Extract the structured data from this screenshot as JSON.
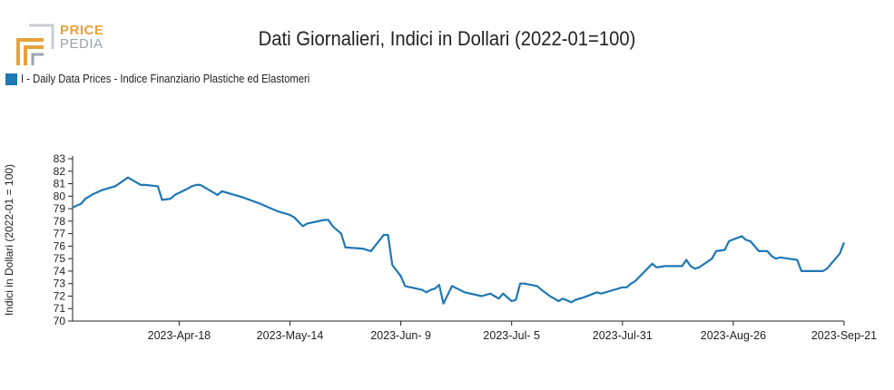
{
  "logo": {
    "line1": "PRICE",
    "line2": "PEDIA"
  },
  "colors": {
    "series": "#1f77b4",
    "logo_orange": "#e8a23a",
    "logo_gray": "#9aa3ad"
  },
  "chart_data": {
    "type": "line",
    "title": "Dati Giornalieri, Indici in Dollari (2022-01=100)",
    "ylabel": "Indici in Dollari (2022-01 = 100)",
    "xlabel": "",
    "ylim": [
      70,
      83
    ],
    "yticks": [
      70,
      71,
      72,
      73,
      74,
      75,
      76,
      77,
      78,
      79,
      80,
      81,
      82,
      83
    ],
    "xticks": [
      "2023-Apr-18",
      "2023-May-14",
      "2023-Jun- 9",
      "2023-Jul- 5",
      "2023-Jul-31",
      "2023-Aug-26",
      "2023-Sep-21"
    ],
    "legend_position": "top-left",
    "grid": false,
    "series": [
      {
        "name": "I - Daily Data Prices - Indice Finanziario Plastiche ed Elastomeri",
        "x": [
          "2023-03-24",
          "2023-03-26",
          "2023-03-27",
          "2023-03-29",
          "2023-03-31",
          "2023-04-03",
          "2023-04-06",
          "2023-04-09",
          "2023-04-10",
          "2023-04-13",
          "2023-04-14",
          "2023-04-16",
          "2023-04-17",
          "2023-04-20",
          "2023-04-21",
          "2023-04-22",
          "2023-04-23",
          "2023-04-27",
          "2023-04-28",
          "2023-04-30",
          "2023-05-03",
          "2023-05-07",
          "2023-05-11",
          "2023-05-12",
          "2023-05-13",
          "2023-05-14",
          "2023-05-15",
          "2023-05-17",
          "2023-05-18",
          "2023-05-22",
          "2023-05-23",
          "2023-05-24",
          "2023-05-26",
          "2023-05-27",
          "2023-05-31",
          "2023-06-02",
          "2023-06-05",
          "2023-06-06",
          "2023-06-07",
          "2023-06-09",
          "2023-06-10",
          "2023-06-14",
          "2023-06-15",
          "2023-06-16",
          "2023-06-17",
          "2023-06-18",
          "2023-06-19",
          "2023-06-21",
          "2023-06-24",
          "2023-06-28",
          "2023-06-30",
          "2023-07-01",
          "2023-07-02",
          "2023-07-03",
          "2023-07-05",
          "2023-07-06",
          "2023-07-07",
          "2023-07-08",
          "2023-07-11",
          "2023-07-12",
          "2023-07-14",
          "2023-07-15",
          "2023-07-16",
          "2023-07-17",
          "2023-07-19",
          "2023-07-20",
          "2023-07-21",
          "2023-07-22",
          "2023-07-25",
          "2023-07-26",
          "2023-07-28",
          "2023-07-31",
          "2023-08-01",
          "2023-08-02",
          "2023-08-03",
          "2023-08-07",
          "2023-08-08",
          "2023-08-10",
          "2023-08-14",
          "2023-08-15",
          "2023-08-16",
          "2023-08-17",
          "2023-08-18",
          "2023-08-21",
          "2023-08-22",
          "2023-08-24",
          "2023-08-25",
          "2023-08-28",
          "2023-08-29",
          "2023-08-30",
          "2023-09-01",
          "2023-09-03",
          "2023-09-04",
          "2023-09-05",
          "2023-09-06",
          "2023-09-08",
          "2023-09-10",
          "2023-09-11",
          "2023-09-16",
          "2023-09-17",
          "2023-09-20",
          "2023-09-21"
        ],
        "values": [
          79.1,
          79.4,
          79.8,
          80.2,
          80.5,
          80.8,
          81.5,
          80.9,
          80.9,
          80.8,
          79.7,
          79.8,
          80.1,
          80.6,
          80.8,
          80.9,
          80.9,
          80.1,
          80.4,
          80.2,
          79.9,
          79.4,
          78.8,
          78.7,
          78.6,
          78.5,
          78.3,
          77.6,
          77.8,
          78.1,
          78.1,
          77.6,
          77.0,
          75.9,
          75.8,
          75.6,
          76.9,
          76.9,
          74.5,
          73.6,
          72.8,
          72.5,
          72.3,
          72.5,
          72.6,
          72.9,
          71.4,
          72.8,
          72.3,
          72.0,
          72.2,
          72.0,
          71.8,
          72.2,
          71.6,
          71.7,
          73.0,
          73.0,
          72.8,
          72.5,
          72.0,
          71.8,
          71.6,
          71.8,
          71.5,
          71.7,
          71.8,
          71.9,
          72.3,
          72.2,
          72.4,
          72.7,
          72.7,
          73.0,
          73.2,
          74.6,
          74.3,
          74.4,
          74.4,
          74.9,
          74.4,
          74.2,
          74.3,
          75.0,
          75.6,
          75.7,
          76.4,
          76.8,
          76.5,
          76.4,
          75.6,
          75.6,
          75.2,
          75.0,
          75.1,
          75.0,
          74.9,
          74.0,
          74.0,
          74.2,
          75.4,
          76.3
        ]
      }
    ]
  }
}
